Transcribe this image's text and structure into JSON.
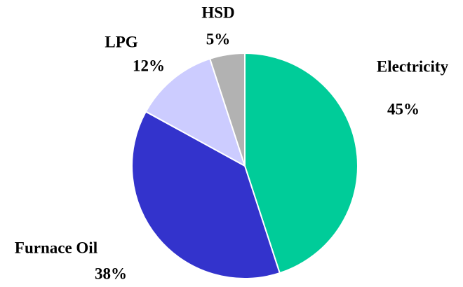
{
  "chart_data": {
    "type": "pie",
    "categories": [
      "Electricity",
      "Furnace Oil",
      "LPG",
      "HSD"
    ],
    "values": [
      45,
      38,
      12,
      5
    ],
    "value_labels": [
      "45%",
      "38%",
      "12%",
      "5%"
    ],
    "colors": [
      "#00cc99",
      "#3333cc",
      "#ccccff",
      "#b2b2b2"
    ]
  }
}
